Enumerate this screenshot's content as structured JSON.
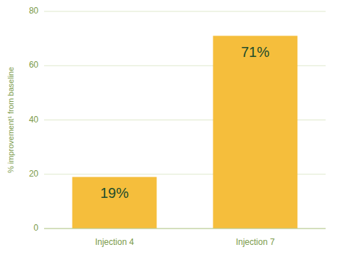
{
  "chart_data": {
    "type": "bar",
    "categories": [
      "Injection 4",
      "Injection 7"
    ],
    "values": [
      19,
      71
    ],
    "value_labels": [
      "19%",
      "71%"
    ],
    "data_labels": true,
    "color": "#F5BE3C",
    "ylabel": "% improvement¹ from baseline",
    "ylim": [
      0,
      80
    ],
    "yticks": [
      0,
      20,
      40,
      60,
      80
    ],
    "grid": true
  }
}
